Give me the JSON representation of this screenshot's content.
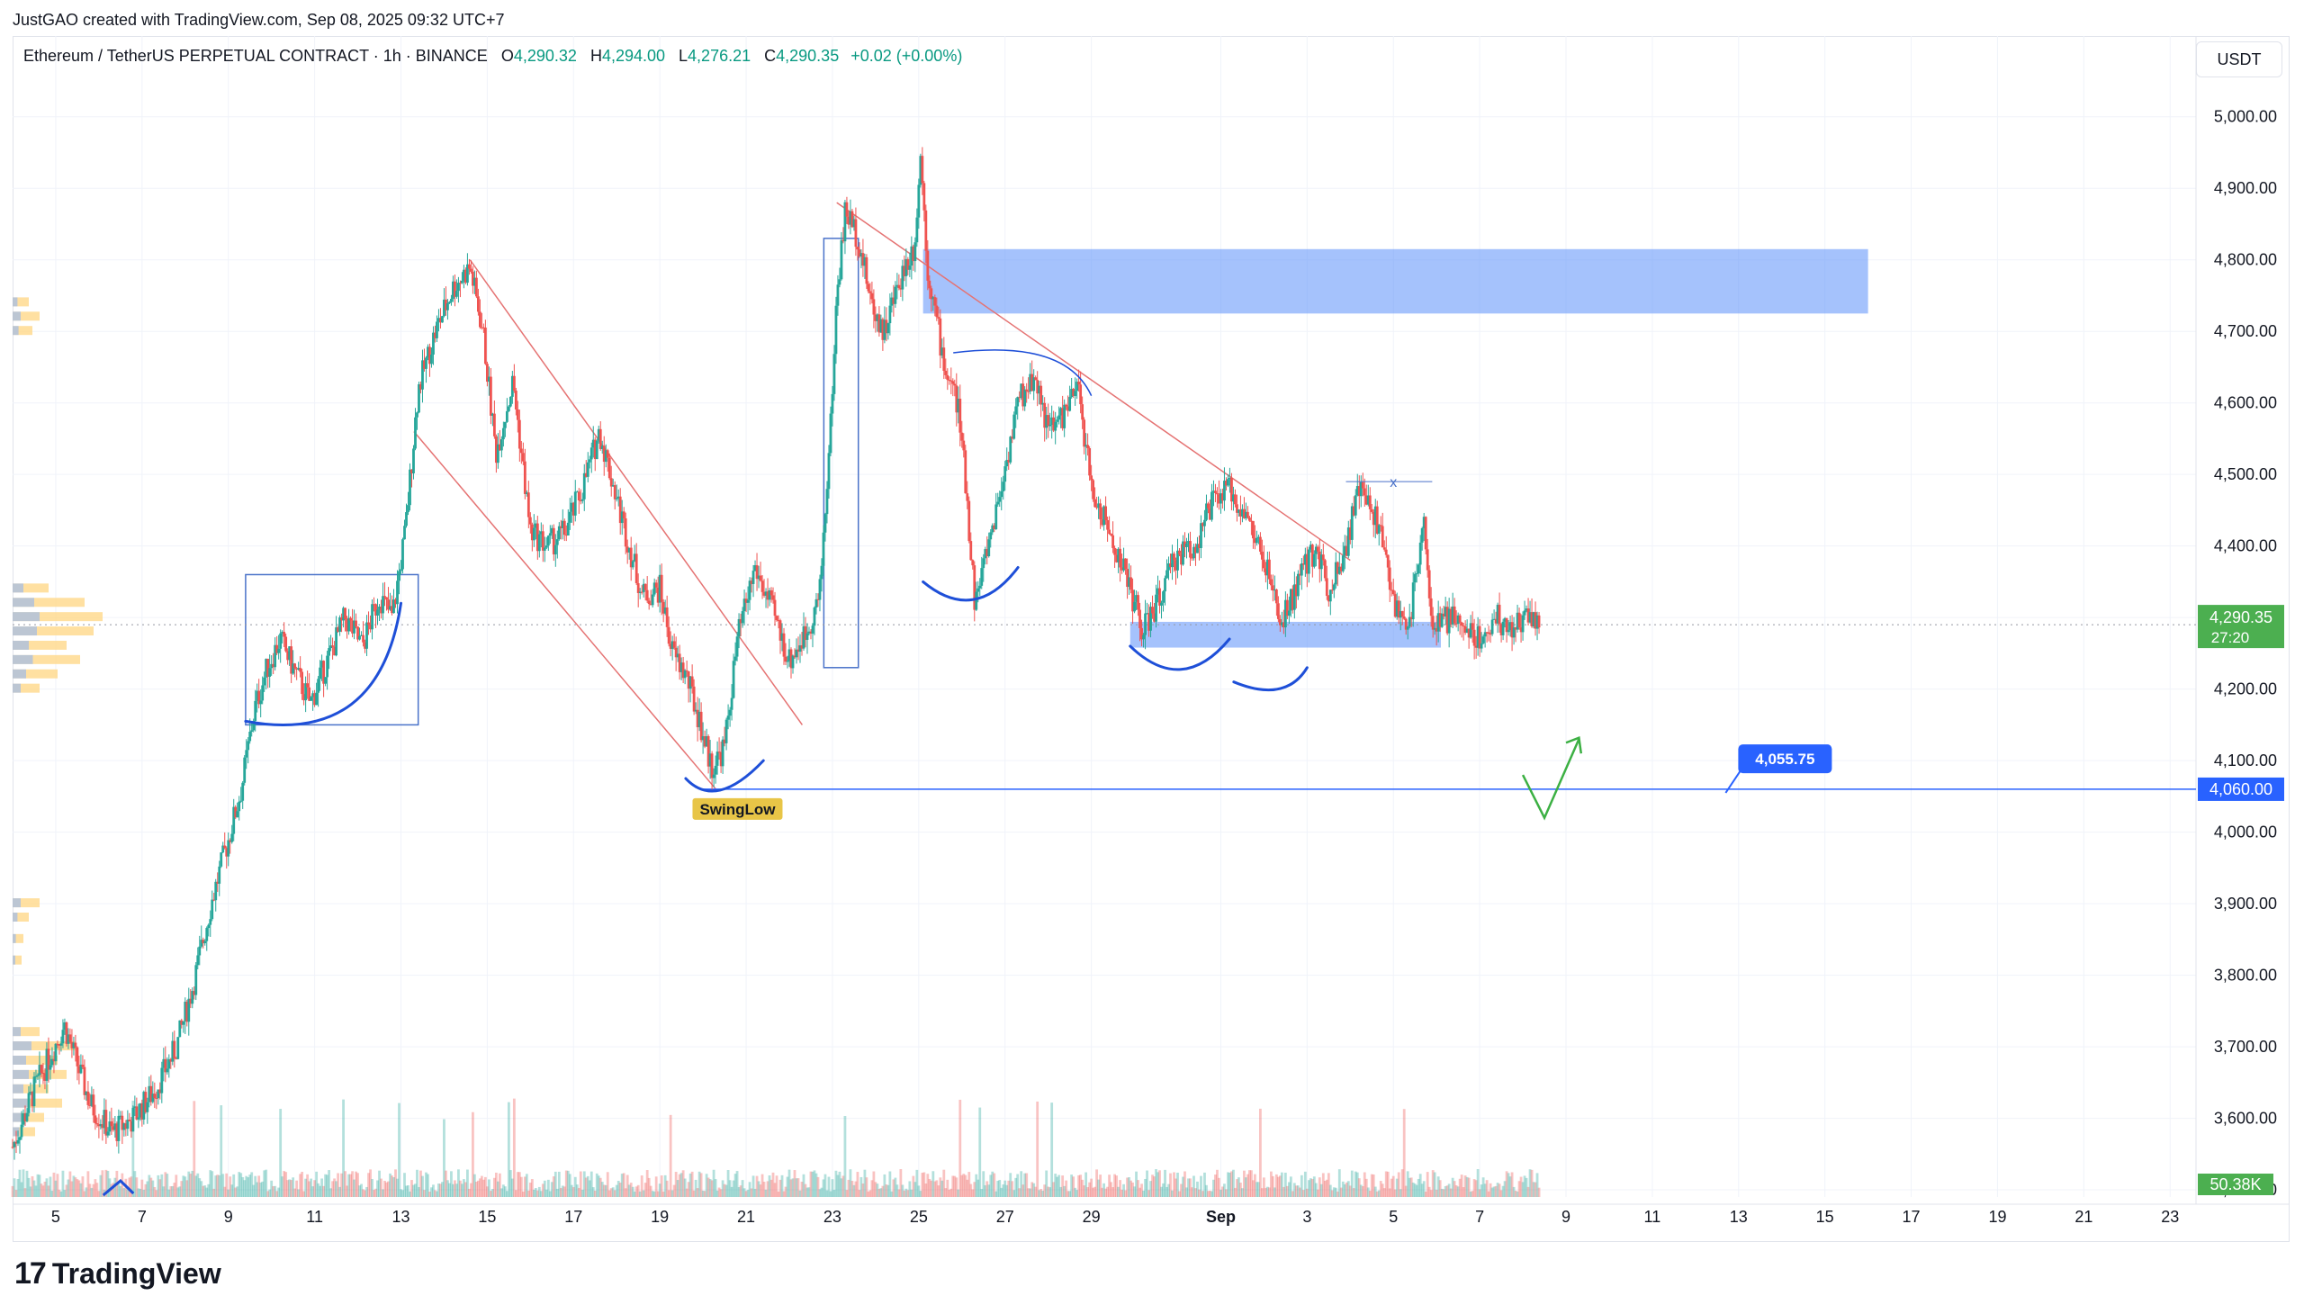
{
  "header": {
    "created_by": "JustGAO created with TradingView.com, Sep 08, 2025 09:32 UTC+7"
  },
  "legend": {
    "symbol": "Ethereum / TetherUS PERPETUAL CONTRACT · 1h · BINANCE",
    "o_label": "O",
    "o_value": "4,290.32",
    "h_label": "H",
    "h_value": "4,294.00",
    "l_label": "L",
    "l_value": "4,276.21",
    "c_label": "C",
    "c_value": "4,290.35",
    "change": "+0.02 (+0.00%)"
  },
  "currency_label": "USDT",
  "brand": {
    "name": "TradingView",
    "mark": "17"
  },
  "colors": {
    "up": "#26a69a",
    "down": "#ef5350",
    "zone_blue": "#5b8ff9",
    "drawing_blue": "#1e4fd8",
    "trend_red": "#e57373",
    "volume_profile": "#ffd88a",
    "price_badge": "#4caf50",
    "level_badge": "#2962ff"
  },
  "chart_data": {
    "type": "candlestick",
    "title": "",
    "xlabel": "",
    "ylabel": "",
    "ylim": [
      3490,
      5050
    ],
    "y_ticks": [
      "5,000.00",
      "4,900.00",
      "4,800.00",
      "4,700.00",
      "4,600.00",
      "4,500.00",
      "4,400.00",
      "4,300.00",
      "4,200.00",
      "4,100.00",
      "4,000.00",
      "3,900.00",
      "3,800.00",
      "3,700.00",
      "3,600.00",
      "3,500.00"
    ],
    "y_tick_values": [
      5000,
      4900,
      4800,
      4700,
      4600,
      4500,
      4400,
      4300,
      4200,
      4100,
      4000,
      3900,
      3800,
      3700,
      3600,
      3500
    ],
    "x_ticks": [
      "5",
      "7",
      "9",
      "11",
      "13",
      "15",
      "17",
      "19",
      "21",
      "23",
      "25",
      "27",
      "29",
      "Sep",
      "3",
      "5",
      "7",
      "9",
      "11",
      "13",
      "15",
      "17",
      "19",
      "21",
      "23"
    ],
    "x_tick_days": [
      5,
      7,
      9,
      11,
      13,
      15,
      17,
      19,
      21,
      23,
      25,
      27,
      29,
      32,
      34,
      36,
      38,
      40,
      42,
      44,
      46,
      48,
      50,
      52,
      54
    ],
    "xlim_days": [
      4,
      54.6
    ],
    "price_path": [
      [
        4.0,
        3560
      ],
      [
        4.5,
        3640
      ],
      [
        5.2,
        3730
      ],
      [
        5.8,
        3620
      ],
      [
        6.3,
        3580
      ],
      [
        6.8,
        3600
      ],
      [
        7.3,
        3640
      ],
      [
        7.8,
        3700
      ],
      [
        8.2,
        3790
      ],
      [
        8.6,
        3900
      ],
      [
        9.0,
        3990
      ],
      [
        9.3,
        4060
      ],
      [
        9.6,
        4170
      ],
      [
        9.9,
        4230
      ],
      [
        10.2,
        4270
      ],
      [
        10.5,
        4230
      ],
      [
        10.9,
        4180
      ],
      [
        11.3,
        4240
      ],
      [
        11.7,
        4300
      ],
      [
        12.1,
        4260
      ],
      [
        12.5,
        4330
      ],
      [
        12.8,
        4300
      ],
      [
        13.1,
        4420
      ],
      [
        13.4,
        4620
      ],
      [
        13.8,
        4700
      ],
      [
        14.2,
        4760
      ],
      [
        14.6,
        4790
      ],
      [
        14.9,
        4700
      ],
      [
        15.2,
        4530
      ],
      [
        15.6,
        4630
      ],
      [
        16.0,
        4420
      ],
      [
        16.4,
        4400
      ],
      [
        16.8,
        4420
      ],
      [
        17.2,
        4480
      ],
      [
        17.6,
        4560
      ],
      [
        17.9,
        4490
      ],
      [
        18.2,
        4420
      ],
      [
        18.6,
        4330
      ],
      [
        19.0,
        4340
      ],
      [
        19.3,
        4250
      ],
      [
        19.6,
        4220
      ],
      [
        19.9,
        4160
      ],
      [
        20.2,
        4090
      ],
      [
        20.5,
        4120
      ],
      [
        20.8,
        4270
      ],
      [
        21.2,
        4370
      ],
      [
        21.6,
        4310
      ],
      [
        22.0,
        4240
      ],
      [
        22.4,
        4280
      ],
      [
        22.7,
        4330
      ],
      [
        22.95,
        4560
      ],
      [
        23.1,
        4750
      ],
      [
        23.3,
        4870
      ],
      [
        23.6,
        4830
      ],
      [
        23.9,
        4740
      ],
      [
        24.2,
        4700
      ],
      [
        24.6,
        4780
      ],
      [
        24.9,
        4820
      ],
      [
        25.05,
        4950
      ],
      [
        25.2,
        4790
      ],
      [
        25.4,
        4720
      ],
      [
        25.6,
        4650
      ],
      [
        25.9,
        4600
      ],
      [
        26.1,
        4480
      ],
      [
        26.3,
        4320
      ],
      [
        26.6,
        4400
      ],
      [
        26.9,
        4480
      ],
      [
        27.3,
        4600
      ],
      [
        27.7,
        4640
      ],
      [
        28.0,
        4560
      ],
      [
        28.3,
        4580
      ],
      [
        28.7,
        4620
      ],
      [
        29.0,
        4480
      ],
      [
        29.4,
        4420
      ],
      [
        29.8,
        4360
      ],
      [
        30.2,
        4280
      ],
      [
        30.6,
        4330
      ],
      [
        31.0,
        4390
      ],
      [
        31.4,
        4400
      ],
      [
        31.8,
        4460
      ],
      [
        32.2,
        4480
      ],
      [
        32.6,
        4440
      ],
      [
        33.0,
        4380
      ],
      [
        33.4,
        4290
      ],
      [
        33.8,
        4350
      ],
      [
        34.2,
        4400
      ],
      [
        34.5,
        4340
      ],
      [
        34.9,
        4400
      ],
      [
        35.2,
        4480
      ],
      [
        35.6,
        4440
      ],
      [
        35.9,
        4360
      ],
      [
        36.1,
        4300
      ],
      [
        36.4,
        4300
      ],
      [
        36.7,
        4450
      ],
      [
        36.9,
        4280
      ],
      [
        37.3,
        4300
      ],
      [
        37.6,
        4290
      ],
      [
        38.0,
        4270
      ],
      [
        38.4,
        4300
      ],
      [
        38.8,
        4280
      ],
      [
        39.1,
        4310
      ],
      [
        39.4,
        4290
      ]
    ],
    "zones": [
      {
        "x0": 25.1,
        "x1": 47.0,
        "y0": 4725,
        "y1": 4815
      },
      {
        "x0": 29.9,
        "x1": 37.1,
        "y0": 4258,
        "y1": 4294
      }
    ],
    "levels": [
      4060
    ],
    "level_badge": "4,060.00",
    "last_price_badge": "4,290.35",
    "countdown": "27:20",
    "target_badge": "4,055.75",
    "volume_badge": "50.38K",
    "annotations": [
      {
        "text": "SwingLow"
      },
      {
        "text": "x"
      }
    ]
  }
}
